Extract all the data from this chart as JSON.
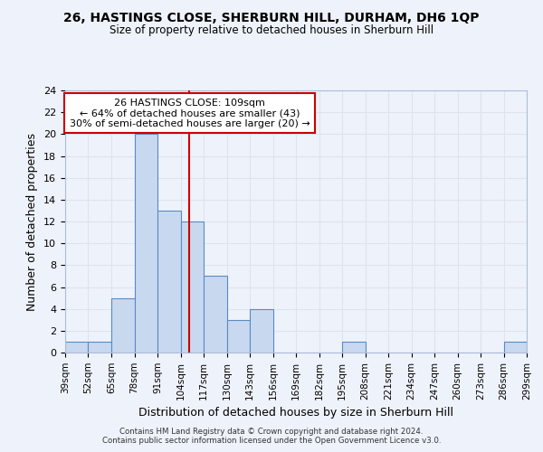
{
  "title1": "26, HASTINGS CLOSE, SHERBURN HILL, DURHAM, DH6 1QP",
  "title2": "Size of property relative to detached houses in Sherburn Hill",
  "xlabel": "Distribution of detached houses by size in Sherburn Hill",
  "ylabel": "Number of detached properties",
  "annotation_line1": "26 HASTINGS CLOSE: 109sqm",
  "annotation_line2": "← 64% of detached houses are smaller (43)",
  "annotation_line3": "30% of semi-detached houses are larger (20) →",
  "footer1": "Contains HM Land Registry data © Crown copyright and database right 2024.",
  "footer2": "Contains public sector information licensed under the Open Government Licence v3.0.",
  "bar_edges": [
    39,
    52,
    65,
    78,
    91,
    104,
    117,
    130,
    143,
    156,
    169,
    182,
    195,
    208,
    221,
    234,
    247,
    260,
    273,
    286,
    299
  ],
  "bar_heights": [
    1,
    1,
    5,
    20,
    13,
    12,
    7,
    3,
    4,
    0,
    0,
    0,
    1,
    0,
    0,
    0,
    0,
    0,
    0,
    1
  ],
  "bar_color": "#c8d9ef",
  "bar_edge_color": "#5b8ac5",
  "reference_line_x": 109,
  "ylim": [
    0,
    24
  ],
  "yticks": [
    0,
    2,
    4,
    6,
    8,
    10,
    12,
    14,
    16,
    18,
    20,
    22,
    24
  ],
  "grid_color": "#dce4f0",
  "annotation_box_color": "#ffffff",
  "annotation_box_edge": "#cc0000",
  "ref_line_color": "#cc0000",
  "bg_color": "#eef2fa"
}
